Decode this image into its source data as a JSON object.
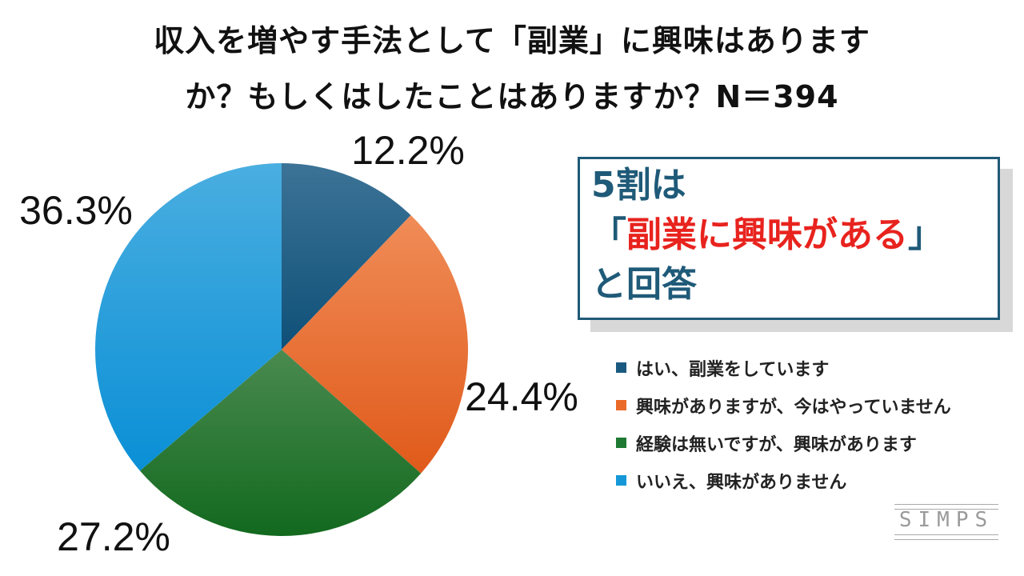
{
  "title": {
    "line1": "収入を増やす手法として「副業」に興味はあります",
    "line2": "か？もしくはしたことはありますか？N＝394"
  },
  "chart_data": {
    "type": "pie",
    "title": "収入を増やす手法として「副業」に興味はありますか？もしくはしたことはありますか？N＝394",
    "slices": [
      {
        "label": "はい、副業をしています",
        "value": 12.2,
        "display": "12.2%",
        "color": "#1b5a80"
      },
      {
        "label": "興味がありますが、今はやっていません",
        "value": 24.4,
        "display": "24.4%",
        "color": "#ea6a2a"
      },
      {
        "label": "経験は無いですが、興味があります",
        "value": 27.2,
        "display": "27.2%",
        "color": "#1e7a32"
      },
      {
        "label": "いいえ、興味がありません",
        "value": 36.3,
        "display": "36.3%",
        "color": "#1598d8"
      }
    ],
    "legend_position": "right"
  },
  "callout": {
    "line1": "5割は",
    "line2_open": "「",
    "line2_red": "副業に興味がある",
    "line2_close": "」",
    "line3": "と回答"
  },
  "logo": {
    "text": "SIMPS"
  }
}
